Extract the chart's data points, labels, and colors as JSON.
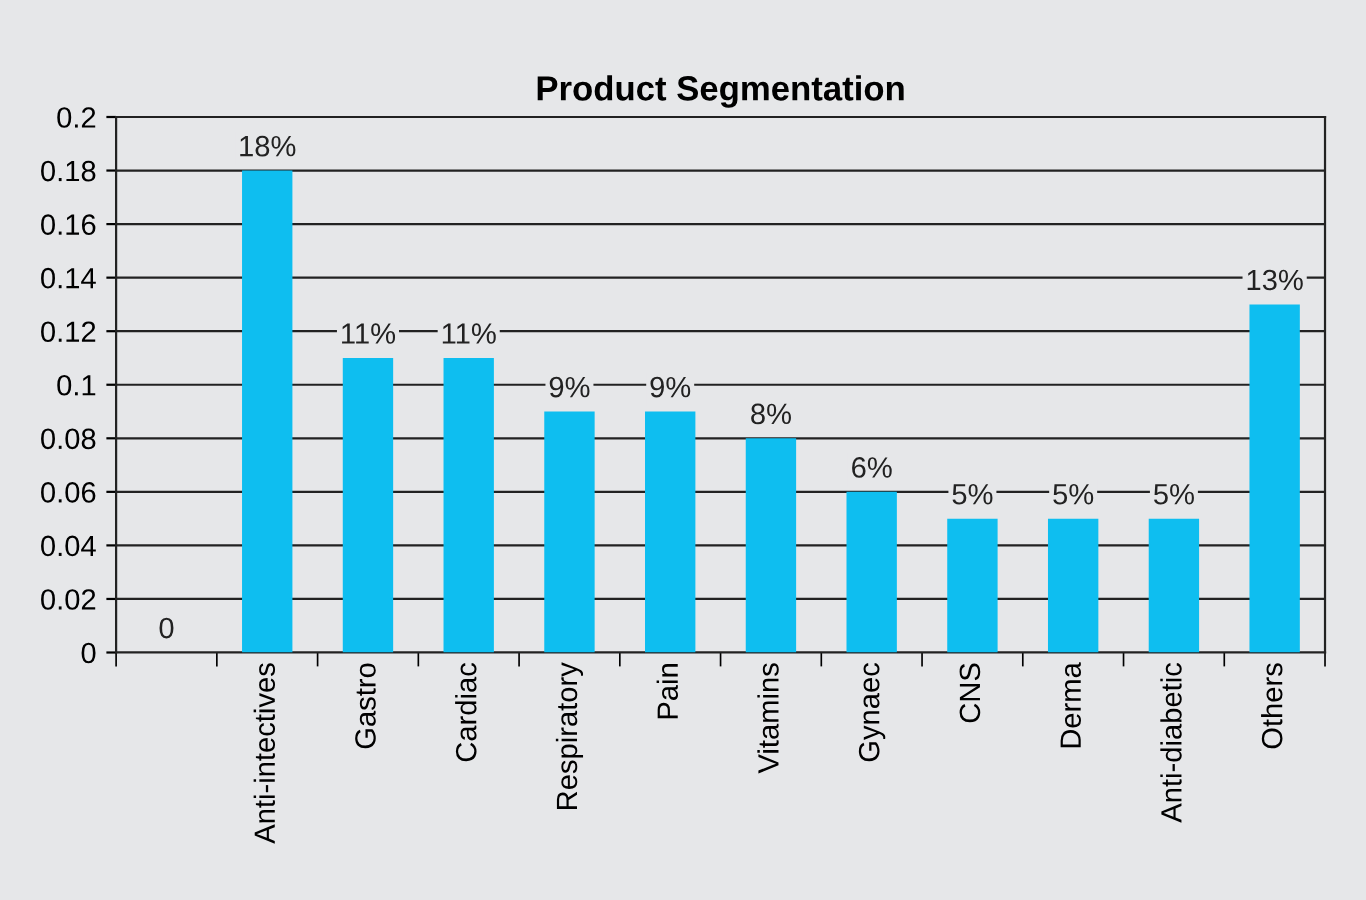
{
  "chart_data": {
    "type": "bar",
    "title": "Product Segmentation",
    "categories": [
      null,
      "Anti-intectives",
      "Gastro",
      "Cardiac",
      "Respiratory",
      "Pain",
      "Vitamins",
      "Gynaec",
      "CNS",
      "Derma",
      "Anti-diabetic",
      "Others"
    ],
    "values": [
      0,
      0.18,
      0.11,
      0.11,
      0.09,
      0.09,
      0.08,
      0.06,
      0.05,
      0.05,
      0.05,
      0.13
    ],
    "value_labels": [
      "0",
      "18%",
      "11%",
      "11%",
      "9%",
      "9%",
      "8%",
      "6%",
      "5%",
      "5%",
      "5%",
      "13%"
    ],
    "color": "#0ebef0",
    "ylim": [
      0,
      0.2
    ],
    "yticks": [
      {
        "value": 0,
        "label": "0"
      },
      0.02,
      0.04,
      0.06,
      0.08,
      {
        "value": 0.1,
        "label": "0.1"
      },
      0.12,
      0.14,
      0.16,
      0.18,
      {
        "value": 0.2,
        "label": "0.2"
      }
    ],
    "grid": "y"
  }
}
